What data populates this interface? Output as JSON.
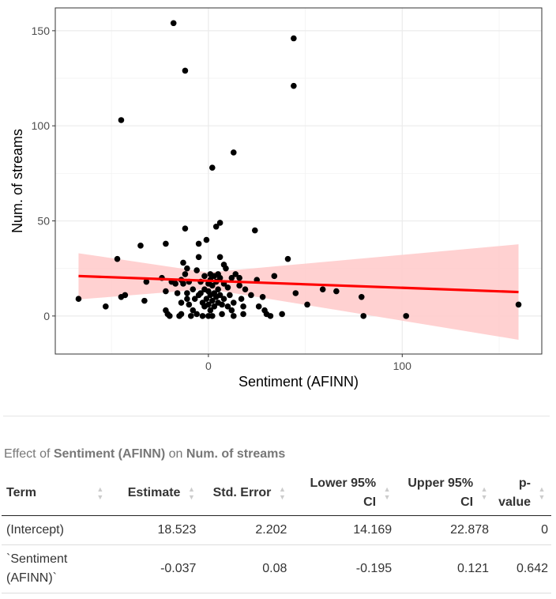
{
  "chart_data": {
    "type": "scatter",
    "xlabel": "Sentiment (AFINN)",
    "ylabel": "Num. of streams",
    "xlim": [
      -79,
      172
    ],
    "ylim": [
      -20,
      162
    ],
    "x_ticks": [
      0,
      100
    ],
    "y_ticks": [
      0,
      50,
      100,
      150
    ],
    "grid": true,
    "points": [
      [
        -18,
        154
      ],
      [
        -12,
        129
      ],
      [
        44,
        146
      ],
      [
        44,
        121
      ],
      [
        -45,
        103
      ],
      [
        13,
        86
      ],
      [
        2,
        78
      ],
      [
        -67,
        9
      ],
      [
        -53,
        5
      ],
      [
        -47,
        30
      ],
      [
        -45,
        10
      ],
      [
        -43,
        11
      ],
      [
        -35,
        37
      ],
      [
        -33,
        8
      ],
      [
        -32,
        18
      ],
      [
        -24,
        20
      ],
      [
        -22,
        38
      ],
      [
        -22,
        13
      ],
      [
        -22,
        3
      ],
      [
        -21,
        1
      ],
      [
        -20,
        0
      ],
      [
        -19,
        18
      ],
      [
        -17,
        17
      ],
      [
        -16,
        12
      ],
      [
        -15,
        0
      ],
      [
        -14,
        1
      ],
      [
        -14,
        7
      ],
      [
        -14,
        19
      ],
      [
        -13,
        28
      ],
      [
        -13,
        17
      ],
      [
        -12,
        22
      ],
      [
        -12,
        46
      ],
      [
        -11,
        25
      ],
      [
        -11,
        12
      ],
      [
        -11,
        9
      ],
      [
        -10,
        18
      ],
      [
        -10,
        6
      ],
      [
        -9,
        0
      ],
      [
        -8,
        3
      ],
      [
        -8,
        14
      ],
      [
        -7,
        9
      ],
      [
        -6,
        24
      ],
      [
        -6,
        1
      ],
      [
        -5,
        38
      ],
      [
        -5,
        31
      ],
      [
        -5,
        11
      ],
      [
        -4,
        18
      ],
      [
        -4,
        12
      ],
      [
        -3,
        7
      ],
      [
        -3,
        0
      ],
      [
        -2,
        21
      ],
      [
        -2,
        14
      ],
      [
        -2,
        5
      ],
      [
        -1,
        40
      ],
      [
        -1,
        9
      ],
      [
        0,
        17
      ],
      [
        0,
        13
      ],
      [
        0,
        6
      ],
      [
        0,
        0
      ],
      [
        1,
        22
      ],
      [
        1,
        19
      ],
      [
        1,
        11
      ],
      [
        1,
        3
      ],
      [
        2,
        16
      ],
      [
        2,
        8
      ],
      [
        2,
        0
      ],
      [
        3,
        21
      ],
      [
        3,
        12
      ],
      [
        3,
        5
      ],
      [
        4,
        47
      ],
      [
        4,
        18
      ],
      [
        4,
        10
      ],
      [
        5,
        22
      ],
      [
        5,
        14
      ],
      [
        5,
        7
      ],
      [
        6,
        49
      ],
      [
        6,
        31
      ],
      [
        6,
        20
      ],
      [
        6,
        11
      ],
      [
        7,
        1
      ],
      [
        7,
        6
      ],
      [
        8,
        27
      ],
      [
        8,
        17
      ],
      [
        8,
        9
      ],
      [
        9,
        25
      ],
      [
        10,
        5
      ],
      [
        10,
        15
      ],
      [
        11,
        11
      ],
      [
        12,
        20
      ],
      [
        12,
        3
      ],
      [
        13,
        0
      ],
      [
        13,
        7
      ],
      [
        14,
        22
      ],
      [
        16,
        16
      ],
      [
        16,
        20
      ],
      [
        17,
        9
      ],
      [
        18,
        1
      ],
      [
        18,
        5
      ],
      [
        19,
        14
      ],
      [
        22,
        11
      ],
      [
        24,
        45
      ],
      [
        25,
        19
      ],
      [
        26,
        5
      ],
      [
        28,
        10
      ],
      [
        29,
        3
      ],
      [
        30,
        1
      ],
      [
        32,
        0
      ],
      [
        34,
        21
      ],
      [
        38,
        1
      ],
      [
        41,
        30
      ],
      [
        45,
        12
      ],
      [
        51,
        6
      ],
      [
        59,
        14
      ],
      [
        66,
        13
      ],
      [
        79,
        10
      ],
      [
        80,
        0
      ],
      [
        102,
        0
      ],
      [
        160,
        6
      ]
    ],
    "fit": {
      "type": "linear",
      "intercept": 18.523,
      "slope": -0.037,
      "x_range": [
        -67,
        160
      ],
      "ci_band": [
        {
          "x": -67,
          "lower": 8.7,
          "upper": 33.0
        },
        {
          "x": 0,
          "lower": 14.2,
          "upper": 22.9
        },
        {
          "x": 160,
          "lower": -12.5,
          "upper": 37.7
        }
      ]
    },
    "colors": {
      "points": "#000000",
      "fit_line": "#ff0000",
      "ci_fill": "#ffcccc",
      "panel_border": "#333333",
      "grid": "#ebebeb"
    }
  },
  "table": {
    "caption_prefix": "Effect of",
    "caption_x": "Sentiment (AFINN)",
    "caption_mid": "on",
    "caption_y": "Num. of streams",
    "headers": {
      "term": "Term",
      "estimate": "Estimate",
      "std_error": "Std. Error",
      "lower_ci": "Lower 95% CI",
      "upper_ci": "Upper 95% CI",
      "p_value": "p-value"
    },
    "rows": [
      {
        "term": "(Intercept)",
        "estimate": "18.523",
        "std_error": "2.202",
        "lower_ci": "14.169",
        "upper_ci": "22.878",
        "p_value": "0"
      },
      {
        "term": "`Sentiment (AFINN)`",
        "estimate": "-0.037",
        "std_error": "0.08",
        "lower_ci": "-0.195",
        "upper_ci": "0.121",
        "p_value": "0.642"
      }
    ]
  }
}
